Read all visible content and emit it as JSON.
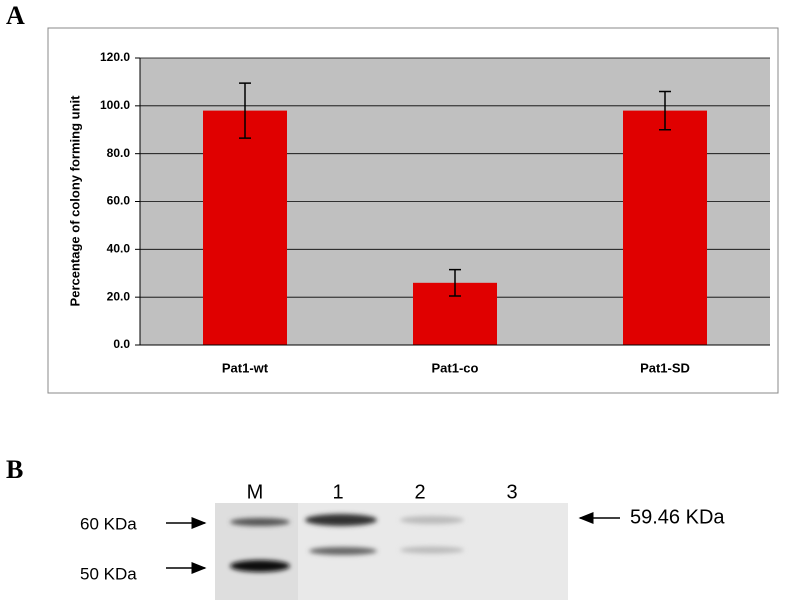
{
  "panel_labels": [
    "A",
    "B"
  ],
  "chart_data": {
    "type": "bar",
    "y_label": "Percentage of colony forming unit",
    "categories": [
      "Pat1-wt",
      "Pat1-co",
      "Pat1-SD"
    ],
    "values": [
      98,
      26,
      98
    ],
    "errors": [
      11.5,
      5.5,
      8
    ],
    "color": "#e00000",
    "ylim": [
      0,
      120
    ],
    "yticks": [
      {
        "value": 0,
        "label": "0.0"
      },
      {
        "value": 20,
        "label": "20.0"
      },
      {
        "value": 40,
        "label": "40.0"
      },
      {
        "value": 60,
        "label": "60.0"
      },
      {
        "value": 80,
        "label": "80.0"
      },
      {
        "value": 100,
        "label": "100.0"
      },
      {
        "value": 120,
        "label": "120.0"
      }
    ],
    "grid": true
  },
  "gel": {
    "lanes": [
      "M",
      "1",
      "2",
      "3"
    ],
    "markers": [
      "60 KDa",
      "50 KDa"
    ],
    "band_label": "59.46 KDa"
  }
}
